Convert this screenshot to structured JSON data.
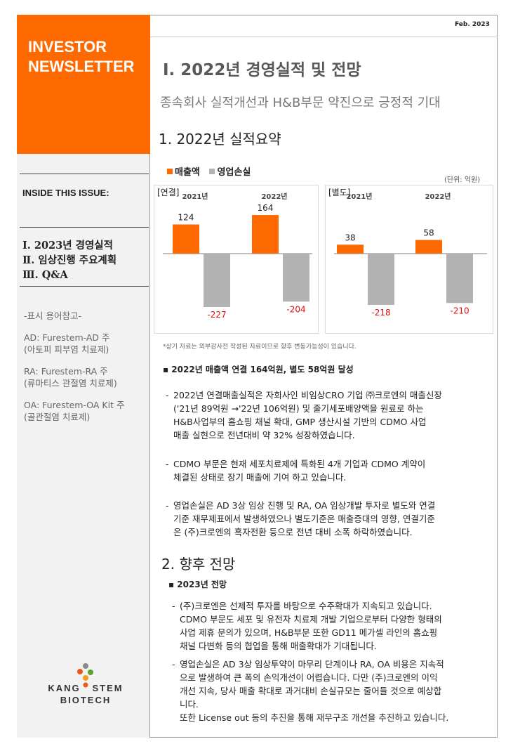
{
  "sidebar": {
    "brand_line1": "INVESTOR",
    "brand_line2": "NEWSLETTER",
    "inside_title": "INSIDE THIS ISSUE:",
    "toc": [
      "Ⅰ. 2023년 경영실적",
      "Ⅱ. 임상진행 주요계획",
      "Ⅲ. Q&A"
    ],
    "terms_title": "-표시 용어참고-",
    "terms": [
      {
        "line1": "AD: Furestem-AD 주",
        "line2": "(아토피 피부염 치료제)"
      },
      {
        "line1": "RA: Furestem-RA 주",
        "line2": "(류마티스 관절염 치료제)"
      },
      {
        "line1": "OA: Furestem-OA Kit 주",
        "line2": "(골관절염 치료제)"
      }
    ],
    "logo_line1_left": "KANG",
    "logo_line1_right": "STEM",
    "logo_line2": "BIOTECH"
  },
  "header": {
    "date": "Feb. 2023",
    "title": "Ⅰ. 2022년 경영실적 및 전망",
    "subtitle": "종속회사 실적개선과 H&B부문 약진으로 긍정적 기대"
  },
  "section1": {
    "heading": "1. 2022년 실적요약",
    "unit": "(단위: 억원)",
    "note": "*상기 자료는 외부감사전 작성된 자료이므로 향후 변동가능성이 있습니다.",
    "bullet": "▪ 2022년 매출액 연결 164억원, 별도 58억원 달성",
    "paragraphs": [
      [
        "2022년 연결매출실적은 자회사인 비임상CRO 기업 ㈜크로엔의 매출신장",
        "('21년 89억원 →'22년 106억원) 및 줄기세포배양액을 원료로 하는",
        "H&B사업부의 홈쇼핑 채널 확대, GMP 생산시설 기반의 CDMO 사업",
        "매출 실현으로 전년대비 약 32% 성장하였습니다."
      ],
      [
        "CDMO 부문은 현재 세포치료제에 특화된 4개 기업과 CDMO 계약이",
        "체결된 상태로 장기 매출에 기여 하고 있습니다."
      ],
      [
        "영업손실은 AD 3상 임상 진행 및 RA, OA 임상개발 투자로 별도와 연결",
        "기준 재무제표에서 발생하였으나 별도기준은 매출증대의 영향, 연결기준",
        "은 (주)크로엔의 흑자전환 등으로 전년 대비 소폭 하락하였습니다."
      ]
    ]
  },
  "section2": {
    "heading": "2. 향후 전망",
    "bullet": "▪ 2023년 전망",
    "paragraphs": [
      [
        "(주)크로엔은 선제적 투자를 바탕으로 수주확대가 지속되고 있습니다.",
        "CDMO 부문도 세포 및 유전자 치료제 개발 기업으로부터 다양한 형태의",
        "사업 제휴 문의가 있으며, H&B부문 또한 GD11 메가셀 라인의 홈쇼핑",
        "채널 다변화 등의 협업을 통해 매출확대가 기대됩니다."
      ],
      [
        "영업손실은 AD 3상 임상투약이 마무리 단계이나 RA, OA 비용은 지속적",
        "으로 발생하여 큰 폭의 손익개선이 어렵습니다. 다만 (주)크로엔의 이익",
        "개선 지속, 당사 매출 확대로 과거대비 손실규모는 줄어들 것으로 예상합",
        "니다."
      ]
    ],
    "closing": "또한 License out 등의 추진을 통해 재무구조 개선을 추진하고 있습니다."
  },
  "colors": {
    "accent": "#ff6a00",
    "loss": "#b3b3b3"
  },
  "chart_data": [
    {
      "type": "bar",
      "title": "[연결]",
      "categories": [
        "2021년",
        "2022년"
      ],
      "series": [
        {
          "name": "매출액",
          "values": [
            124,
            164
          ]
        },
        {
          "name": "영업손실",
          "values": [
            -227,
            -204
          ]
        }
      ]
    },
    {
      "type": "bar",
      "title": "[별도]",
      "categories": [
        "2021년",
        "2022년"
      ],
      "series": [
        {
          "name": "매출액",
          "values": [
            38,
            58
          ]
        },
        {
          "name": "영업손실",
          "values": [
            -218,
            -210
          ]
        }
      ]
    }
  ]
}
